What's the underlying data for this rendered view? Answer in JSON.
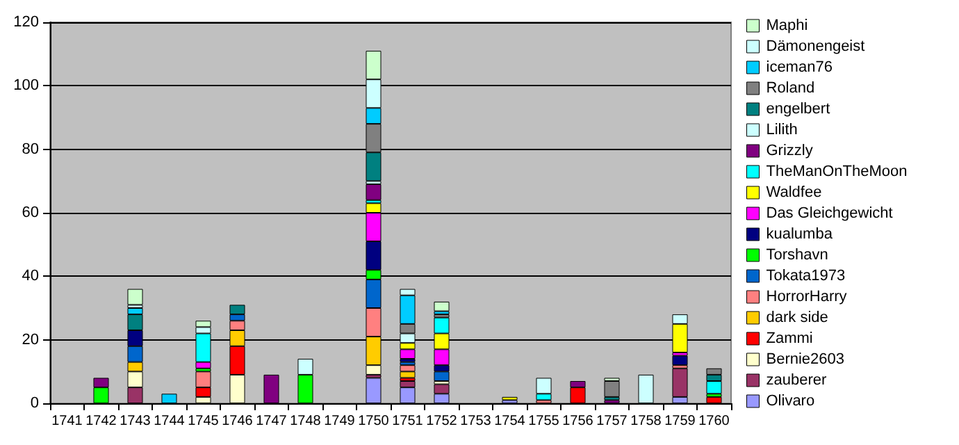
{
  "chart_data": {
    "type": "bar",
    "stacked": true,
    "categories": [
      "1741",
      "1742",
      "1743",
      "1744",
      "1745",
      "1746",
      "1747",
      "1748",
      "1749",
      "1750",
      "1751",
      "1752",
      "1753",
      "1754",
      "1755",
      "1756",
      "1757",
      "1758",
      "1759",
      "1760"
    ],
    "series": [
      {
        "name": "Olivaro",
        "color": "#9999ff",
        "values": [
          null,
          null,
          null,
          null,
          null,
          null,
          null,
          null,
          null,
          8,
          5,
          3,
          null,
          1,
          null,
          null,
          null,
          null,
          2,
          null
        ]
      },
      {
        "name": "zauberer",
        "color": "#993366",
        "values": [
          null,
          null,
          5,
          null,
          null,
          null,
          null,
          null,
          null,
          1,
          2,
          3,
          null,
          null,
          null,
          null,
          null,
          null,
          9,
          null
        ]
      },
      {
        "name": "Bernie2603",
        "color": "#ffffcc",
        "values": [
          null,
          null,
          5,
          null,
          2,
          9,
          null,
          null,
          null,
          3,
          null,
          1,
          null,
          null,
          null,
          null,
          null,
          null,
          null,
          null
        ]
      },
      {
        "name": "Zammi",
        "color": "#ff0000",
        "values": [
          null,
          null,
          null,
          null,
          3,
          9,
          null,
          null,
          null,
          null,
          1,
          null,
          null,
          null,
          null,
          5,
          null,
          null,
          null,
          2
        ]
      },
      {
        "name": "dark side",
        "color": "#ffcc00",
        "values": [
          null,
          null,
          3,
          null,
          null,
          5,
          null,
          null,
          null,
          9,
          2,
          null,
          null,
          null,
          null,
          null,
          null,
          null,
          null,
          null
        ]
      },
      {
        "name": "HorrorHarry",
        "color": "#ff8080",
        "values": [
          null,
          null,
          null,
          null,
          5,
          3,
          null,
          null,
          null,
          9,
          2,
          null,
          null,
          null,
          1,
          null,
          null,
          null,
          1,
          null
        ]
      },
      {
        "name": "Tokata1973",
        "color": "#0066cc",
        "values": [
          null,
          null,
          5,
          null,
          null,
          2,
          null,
          null,
          null,
          9,
          1,
          3,
          null,
          null,
          null,
          null,
          null,
          null,
          null,
          null
        ]
      },
      {
        "name": "Torshavn",
        "color": "#00ff00",
        "values": [
          null,
          5,
          null,
          null,
          1,
          null,
          null,
          9,
          null,
          3,
          null,
          null,
          null,
          null,
          null,
          null,
          null,
          null,
          null,
          1
        ]
      },
      {
        "name": "kualumba",
        "color": "#000080",
        "values": [
          null,
          null,
          5,
          null,
          null,
          null,
          null,
          null,
          null,
          9,
          1,
          2,
          null,
          null,
          null,
          null,
          null,
          null,
          3,
          null
        ]
      },
      {
        "name": "Das Gleichgewicht",
        "color": "#ff00ff",
        "values": [
          null,
          null,
          null,
          null,
          2,
          null,
          null,
          null,
          null,
          9,
          3,
          5,
          null,
          null,
          null,
          null,
          null,
          null,
          1,
          null
        ]
      },
      {
        "name": "Waldfee",
        "color": "#ffff00",
        "values": [
          null,
          null,
          null,
          null,
          null,
          null,
          null,
          null,
          null,
          3,
          2,
          5,
          null,
          1,
          null,
          null,
          null,
          null,
          9,
          null
        ]
      },
      {
        "name": "TheManOnTheMoon",
        "color": "#00ffff",
        "values": [
          null,
          null,
          null,
          null,
          9,
          null,
          null,
          null,
          null,
          1,
          null,
          5,
          null,
          null,
          2,
          null,
          null,
          null,
          null,
          4
        ]
      },
      {
        "name": "Grizzly",
        "color": "#800080",
        "values": [
          null,
          3,
          null,
          null,
          null,
          null,
          9,
          null,
          null,
          5,
          null,
          null,
          null,
          null,
          null,
          2,
          1,
          null,
          null,
          null
        ]
      },
      {
        "name": "Lilith",
        "color": "#ccffff",
        "values": [
          null,
          null,
          null,
          null,
          2,
          null,
          null,
          5,
          null,
          1,
          3,
          null,
          null,
          null,
          5,
          null,
          null,
          9,
          3,
          null
        ]
      },
      {
        "name": "engelbert",
        "color": "#008080",
        "values": [
          null,
          null,
          5,
          null,
          null,
          3,
          null,
          null,
          null,
          9,
          null,
          null,
          null,
          null,
          null,
          null,
          1,
          null,
          null,
          2
        ]
      },
      {
        "name": "Roland",
        "color": "#808080",
        "values": [
          null,
          null,
          null,
          null,
          null,
          null,
          null,
          null,
          null,
          9,
          3,
          1,
          null,
          null,
          null,
          null,
          5,
          null,
          null,
          2
        ]
      },
      {
        "name": "iceman76",
        "color": "#00ccff",
        "values": [
          null,
          null,
          2,
          3,
          null,
          null,
          null,
          null,
          null,
          5,
          9,
          1,
          null,
          null,
          null,
          null,
          null,
          null,
          null,
          null
        ]
      },
      {
        "name": "Dämonengeist",
        "color": "#ccffff",
        "values": [
          null,
          null,
          1,
          null,
          null,
          null,
          null,
          null,
          null,
          9,
          2,
          null,
          null,
          null,
          null,
          null,
          null,
          null,
          null,
          null
        ]
      },
      {
        "name": "Maphi",
        "color": "#ccffcc",
        "values": [
          null,
          null,
          5,
          null,
          2,
          null,
          null,
          null,
          null,
          9,
          null,
          3,
          null,
          null,
          null,
          null,
          1,
          null,
          null,
          null
        ]
      }
    ],
    "ylim": [
      0,
      120
    ],
    "yticks": [
      0,
      20,
      40,
      60,
      80,
      100,
      120
    ],
    "grid": "y",
    "legend": "right"
  }
}
